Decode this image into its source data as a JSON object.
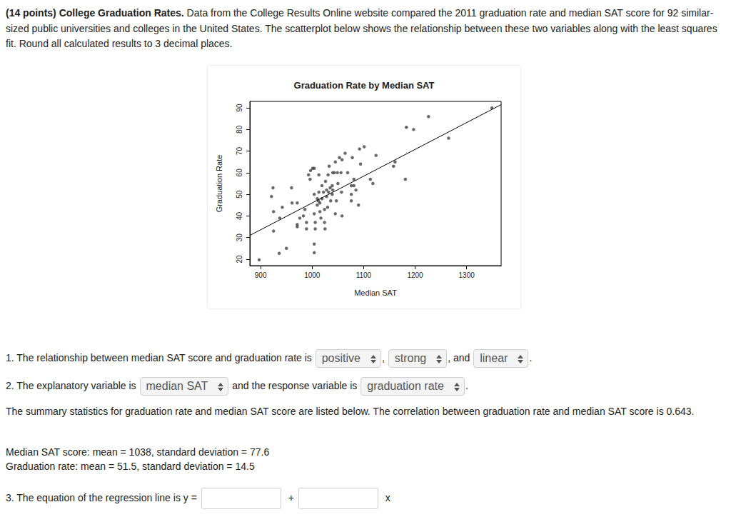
{
  "header": {
    "title": "(14 points) College Graduation Rates.",
    "text": "Data from the College Results Online website compared the 2011 graduation rate and median SAT score for 92 similar-sized public universities and colleges in the United States. The scatterplot below shows the relationship between these two variables along with the least squares fit. Round all calculated results to 3 decimal places."
  },
  "chart_data": {
    "type": "scatter",
    "title": "Graduation Rate by Median SAT",
    "x_label": "Median SAT",
    "y_label": "Graduation Rate",
    "xlim": [
      879,
      1367
    ],
    "xticks": [
      900,
      1000,
      1100,
      1200,
      1300
    ],
    "ylim": [
      17,
      93
    ],
    "yticks": [
      20,
      30,
      40,
      50,
      60,
      70,
      80,
      90
    ],
    "grid": false,
    "series": [
      {
        "type": "scatter",
        "color": "#444444",
        "marker": "circle",
        "x": [
          897,
          936,
          950,
          921,
          924,
          925,
          925,
          937,
          942,
          960,
          961,
          971,
          971,
          971,
          976,
          983,
          986,
          989,
          989,
          993,
          996,
          997,
          1001,
          1004,
          1004,
          1004,
          1006,
          1006,
          1004,
          1004,
          1010,
          1010,
          1013,
          1013,
          1015,
          1015,
          1017,
          1019,
          1019,
          1022,
          1024,
          1024,
          1025,
          1026,
          1028,
          1028,
          1031,
          1032,
          1033,
          1035,
          1036,
          1039,
          1039,
          1040,
          1040,
          1043,
          1045,
          1045,
          1047,
          1049,
          1053,
          1056,
          1057,
          1058,
          1058,
          1064,
          1069,
          1076,
          1076,
          1076,
          1078,
          1081,
          1081,
          1085,
          1090,
          1092,
          1094,
          1101,
          1113,
          1118,
          1124,
          1158,
          1161,
          1181,
          1183,
          1197,
          1226,
          1265,
          1349,
          1012,
          1030,
          1050
        ],
        "values": [
          19.7,
          22.7,
          25,
          49,
          53,
          42,
          33,
          39,
          44,
          53,
          46,
          46,
          36,
          35,
          39,
          40,
          43,
          37,
          34,
          59,
          57,
          61,
          62,
          62,
          50,
          41,
          37,
          34,
          27,
          23,
          48,
          45,
          59,
          51,
          46,
          42,
          39,
          54,
          48,
          51,
          43,
          37,
          34,
          56,
          52,
          49,
          59,
          51,
          63,
          53,
          47,
          50,
          54,
          60,
          52,
          60,
          65,
          41,
          47,
          60,
          67,
          60,
          51,
          40,
          66,
          69,
          60,
          54,
          50,
          47,
          67,
          57,
          54,
          52,
          45,
          71,
          64,
          72,
          57,
          55,
          68,
          63,
          65,
          57,
          81,
          80,
          86,
          76,
          90,
          47,
          44,
          55
        ]
      },
      {
        "type": "line",
        "color": "#000000",
        "line_style": "solid",
        "x": [
          879,
          1367
        ],
        "values": [
          31,
          91.5
        ]
      }
    ]
  },
  "body": [
    {
      "parts": [
        {
          "text": "1. The relationship between median SAT score and graduation rate is "
        },
        {
          "select": "positive"
        },
        {
          "text": ", "
        },
        {
          "select": "strong"
        },
        {
          "text": ", and "
        },
        {
          "select": "linear"
        },
        {
          "text": "."
        }
      ]
    },
    {
      "parts": [
        {
          "text": "2. The explanatory variable is "
        },
        {
          "select": "median SAT"
        },
        {
          "text": " and the response variable is "
        },
        {
          "select": "graduation rate"
        },
        {
          "text": "."
        }
      ]
    },
    {
      "parts": [
        {
          "text": "The summary statistics for graduation rate and median SAT score are listed below. The correlation between graduation rate and median SAT score is 0.643."
        }
      ]
    },
    {
      "parts": [
        {
          "text": "Median SAT score: mean = 1038, standard deviation = 77.6"
        }
      ]
    },
    {
      "parts": [
        {
          "text": "Graduation rate: mean = 51.5, standard deviation = 14.5"
        }
      ]
    },
    {
      "parts": [
        {
          "text": "3. The equation of the regression line is y = "
        },
        {
          "blank": true
        },
        {
          "text": "+ "
        },
        {
          "blank": true
        },
        {
          "text": "x"
        }
      ]
    }
  ]
}
